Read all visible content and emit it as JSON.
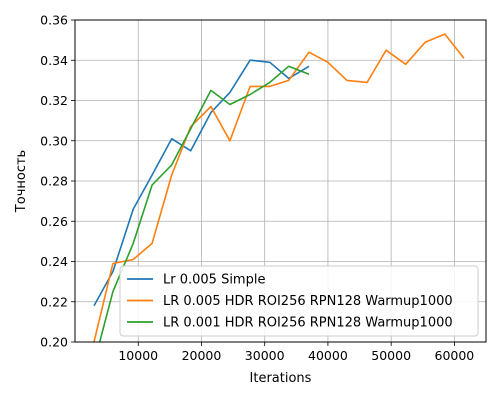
{
  "chart_data": {
    "type": "line",
    "title": "",
    "xlabel": "Iterations",
    "ylabel": "Точность",
    "xlim": [
      0,
      65000
    ],
    "ylim": [
      0.2,
      0.36
    ],
    "x_ticks": [
      10000,
      20000,
      30000,
      40000,
      50000,
      60000
    ],
    "x_tick_labels": [
      "10000",
      "20000",
      "30000",
      "40000",
      "50000",
      "60000"
    ],
    "y_ticks": [
      0.2,
      0.22,
      0.24,
      0.26,
      0.28,
      0.3,
      0.32,
      0.34,
      0.36
    ],
    "y_tick_labels": [
      "0.20",
      "0.22",
      "0.24",
      "0.26",
      "0.28",
      "0.30",
      "0.32",
      "0.34",
      "0.36"
    ],
    "grid": true,
    "legend_position": "lower-right",
    "series": [
      {
        "name": "Lr 0.005 Simple",
        "color": "#1f77b4",
        "x": [
          3000,
          6000,
          9200,
          12200,
          15300,
          18300,
          21500,
          24500,
          27700,
          30800,
          33800,
          37000
        ],
        "y": [
          0.218,
          0.235,
          0.266,
          0.283,
          0.301,
          0.295,
          0.314,
          0.324,
          0.34,
          0.339,
          0.331,
          0.337
        ]
      },
      {
        "name": "LR 0.005 HDR ROI256 RPN128 Warmup1000",
        "color": "#ff7f0e",
        "x": [
          3000,
          6000,
          9200,
          12200,
          15300,
          18300,
          21500,
          24500,
          27700,
          30800,
          33800,
          37000,
          40000,
          43000,
          46200,
          49200,
          52300,
          55400,
          58500,
          61500
        ],
        "y": [
          0.2,
          0.239,
          0.241,
          0.249,
          0.283,
          0.307,
          0.317,
          0.3,
          0.327,
          0.327,
          0.33,
          0.344,
          0.339,
          0.33,
          0.329,
          0.345,
          0.338,
          0.349,
          0.353,
          0.341
        ]
      },
      {
        "name": "LR 0.001 HDR ROI256 RPN128 Warmup1000",
        "color": "#2ca02c",
        "x": [
          3900,
          6000,
          9200,
          12200,
          15300,
          18300,
          21500,
          24500,
          27700,
          30800,
          33800,
          37000
        ],
        "y": [
          0.2,
          0.225,
          0.249,
          0.278,
          0.288,
          0.306,
          0.325,
          0.318,
          0.323,
          0.329,
          0.337,
          0.333
        ]
      }
    ]
  }
}
